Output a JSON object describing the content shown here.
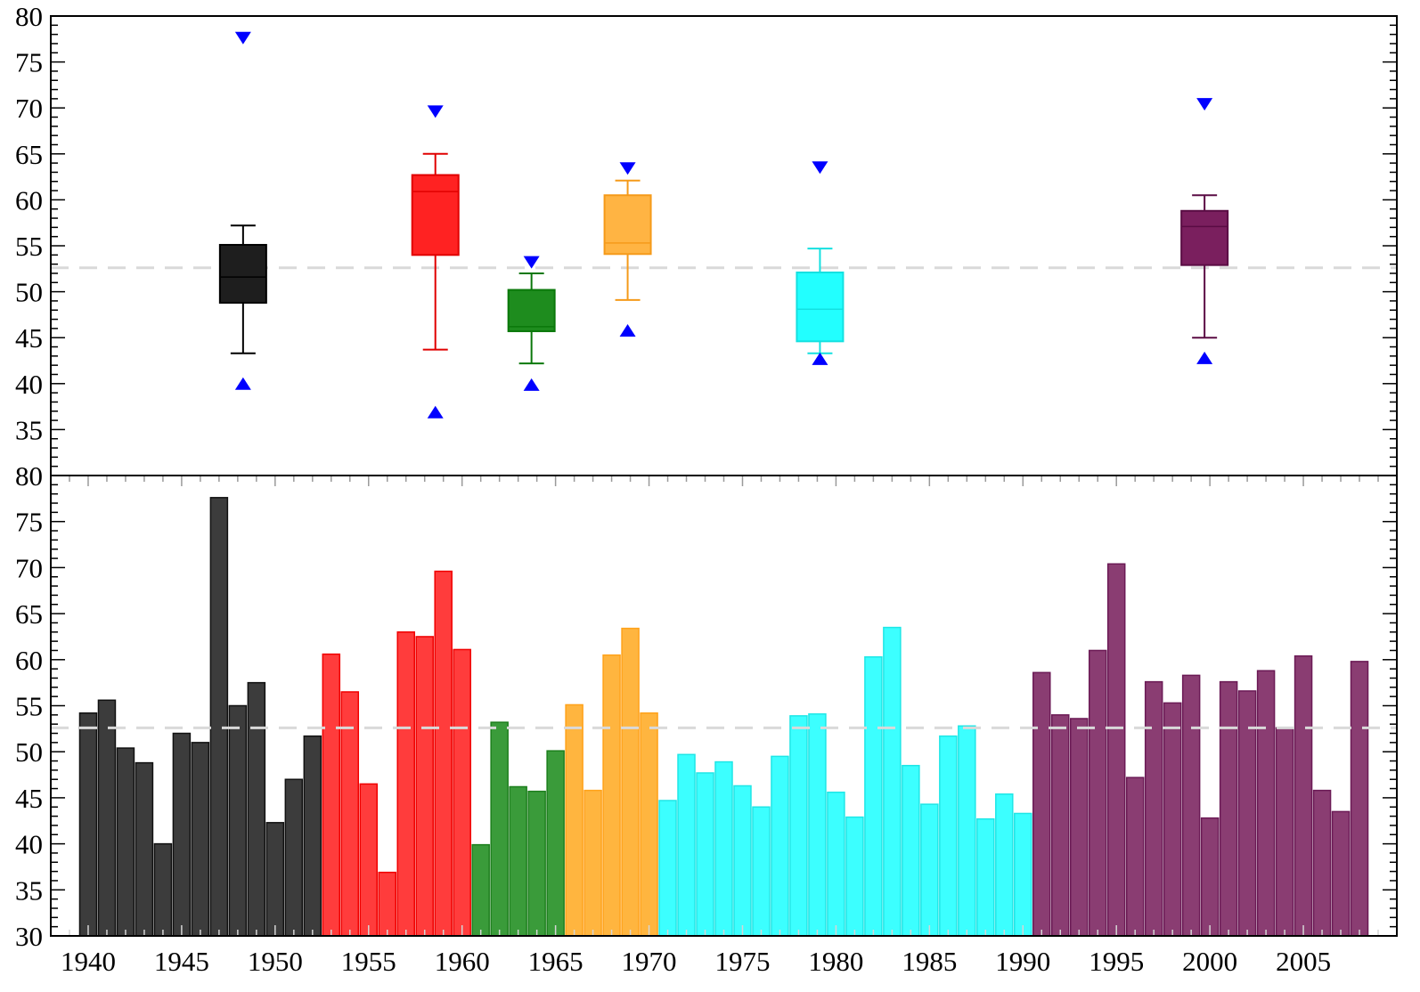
{
  "chart_data": [
    {
      "type": "box",
      "ylim": [
        30,
        80
      ],
      "yticks": [
        80,
        75,
        70,
        65,
        60,
        55,
        50,
        45,
        40,
        35
      ],
      "grid": false,
      "reference_line": 52.6,
      "reference_line_color": "#d9d9d9",
      "marker_color": "#0000ff",
      "boxes": [
        {
          "min": 40.0,
          "whisker_low": 43.3,
          "q1": 48.8,
          "median": 51.6,
          "q3": 55.1,
          "whisker_high": 57.2,
          "max": 77.6,
          "fill": "#1e1e1e",
          "edge": "#000000"
        },
        {
          "min": 36.9,
          "whisker_low": 43.7,
          "q1": 54.0,
          "median": 60.9,
          "q3": 62.7,
          "whisker_high": 65.0,
          "max": 69.6,
          "fill": "#ff2222",
          "edge": "#e00000"
        },
        {
          "min": 39.9,
          "whisker_low": 42.2,
          "q1": 45.7,
          "median": 46.2,
          "q3": 50.2,
          "whisker_high": 52.0,
          "max": 53.2,
          "fill": "#1e8c1e",
          "edge": "#0a780a"
        },
        {
          "min": 45.8,
          "whisker_low": 49.1,
          "q1": 54.1,
          "median": 55.3,
          "q3": 60.5,
          "whisker_high": 62.1,
          "max": 63.4,
          "fill": "#ffb443",
          "edge": "#f59a1a"
        },
        {
          "min": 42.7,
          "whisker_low": 43.3,
          "q1": 44.6,
          "median": 48.1,
          "q3": 52.1,
          "whisker_high": 54.7,
          "max": 63.5,
          "fill": "#22ffff",
          "edge": "#14e0e0"
        },
        {
          "min": 42.8,
          "whisker_low": 45.0,
          "q1": 52.9,
          "median": 57.1,
          "q3": 58.8,
          "whisker_high": 60.5,
          "max": 70.4,
          "fill": "#7a1f5e",
          "edge": "#5a0c44"
        }
      ]
    },
    {
      "type": "bar",
      "xlim": [
        1938,
        2010
      ],
      "ylim": [
        30,
        80
      ],
      "xticks": [
        1940,
        1945,
        1950,
        1955,
        1960,
        1965,
        1970,
        1975,
        1980,
        1985,
        1990,
        1995,
        2000,
        2005
      ],
      "yticks": [
        80,
        75,
        70,
        65,
        60,
        55,
        50,
        45,
        40,
        35,
        30
      ],
      "grid": false,
      "reference_line": 52.6,
      "reference_line_color": "#d9d9d9",
      "series": [
        {
          "x": [
            1940,
            1941,
            1942,
            1943,
            1944,
            1945,
            1946,
            1947,
            1948,
            1949,
            1950,
            1951,
            1952
          ],
          "values": [
            54.2,
            55.6,
            50.4,
            48.8,
            40.0,
            52.0,
            51.0,
            77.6,
            55.0,
            57.5,
            42.3,
            47.0,
            51.7
          ],
          "fill": "#3c3c3c",
          "edge": "#111111"
        },
        {
          "x": [
            1953,
            1954,
            1955,
            1956,
            1957,
            1958,
            1959,
            1960
          ],
          "values": [
            60.6,
            56.5,
            46.5,
            36.9,
            63.0,
            62.5,
            69.6,
            61.1
          ],
          "fill": "#ff3c3c",
          "edge": "#f00000"
        },
        {
          "x": [
            1961,
            1962,
            1963,
            1964,
            1965
          ],
          "values": [
            39.9,
            53.2,
            46.2,
            45.7,
            50.1
          ],
          "fill": "#3a9b3a",
          "edge": "#1d7f1d"
        },
        {
          "x": [
            1966,
            1967,
            1968,
            1969,
            1970
          ],
          "values": [
            55.1,
            45.8,
            60.5,
            63.4,
            54.2
          ],
          "fill": "#ffb53f",
          "edge": "#ffa21a"
        },
        {
          "x": [
            1971,
            1972,
            1973,
            1974,
            1975,
            1976,
            1977,
            1978,
            1979,
            1980,
            1981,
            1982,
            1983,
            1984,
            1985,
            1986,
            1987,
            1988,
            1989,
            1990
          ],
          "values": [
            44.7,
            49.7,
            47.7,
            48.9,
            46.3,
            44.0,
            49.5,
            53.9,
            54.1,
            45.6,
            42.9,
            60.3,
            63.5,
            48.5,
            44.3,
            51.7,
            52.8,
            42.7,
            45.4,
            43.3
          ],
          "fill": "#3cffff",
          "edge": "#1fe6e6"
        },
        {
          "x": [
            1991,
            1992,
            1993,
            1994,
            1995,
            1996,
            1997,
            1998,
            1999,
            2000,
            2001,
            2002,
            2003,
            2004,
            2005,
            2006,
            2007,
            2008
          ],
          "values": [
            58.6,
            54.0,
            53.6,
            61.0,
            70.4,
            47.2,
            57.6,
            55.3,
            58.3,
            42.8,
            57.6,
            56.6,
            58.8,
            52.6,
            60.4,
            45.8,
            43.5,
            59.8
          ],
          "fill": "#8a3d72",
          "edge": "#6b1a55"
        }
      ]
    }
  ]
}
